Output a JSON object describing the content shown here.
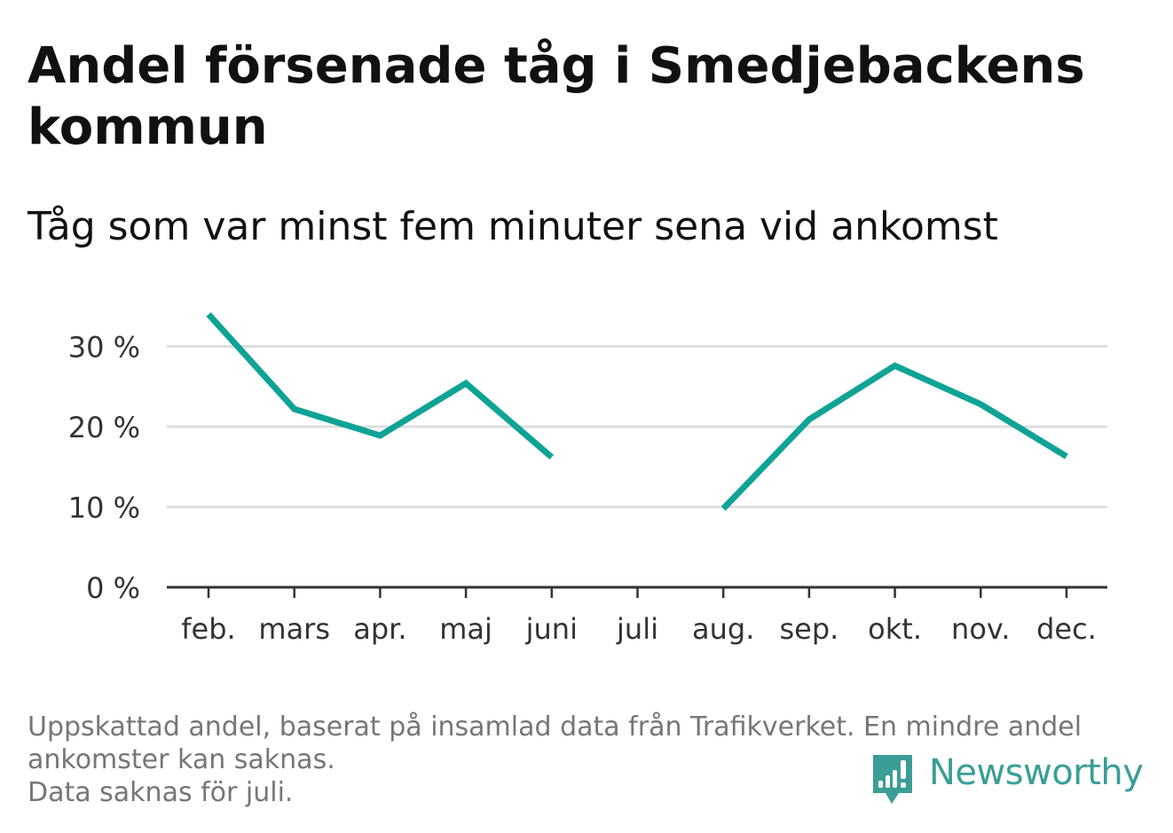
{
  "header": {
    "title": "Andel försenade tåg i Smedjebackens kommun",
    "subtitle": "Tåg som var minst fem minuter sena vid ankomst"
  },
  "chart_data": {
    "type": "line",
    "x": [
      "feb.",
      "mars",
      "apr.",
      "maj",
      "juni",
      "juli",
      "aug.",
      "sep.",
      "okt.",
      "nov.",
      "dec."
    ],
    "series": [
      {
        "values": [
          34,
          22.2,
          18.9,
          25.4,
          16.2,
          null,
          9.8,
          20.9,
          27.6,
          22.8,
          16.3
        ],
        "color": "#0fa396"
      }
    ],
    "yticks": [
      0,
      10,
      20,
      30
    ],
    "ytick_labels": [
      "0 %",
      "10 %",
      "20 %",
      "30 %"
    ],
    "ylim": [
      0,
      34
    ],
    "grid": true,
    "legend": "none"
  },
  "footer": {
    "note_lines": [
      "Uppskattad andel, baserat på insamlad data från Trafikverket. En mindre andel",
      "ankomster kan saknas.",
      "Data saknas för juli."
    ],
    "brand": "Newsworthy",
    "brand_color": "#3a9e97"
  }
}
